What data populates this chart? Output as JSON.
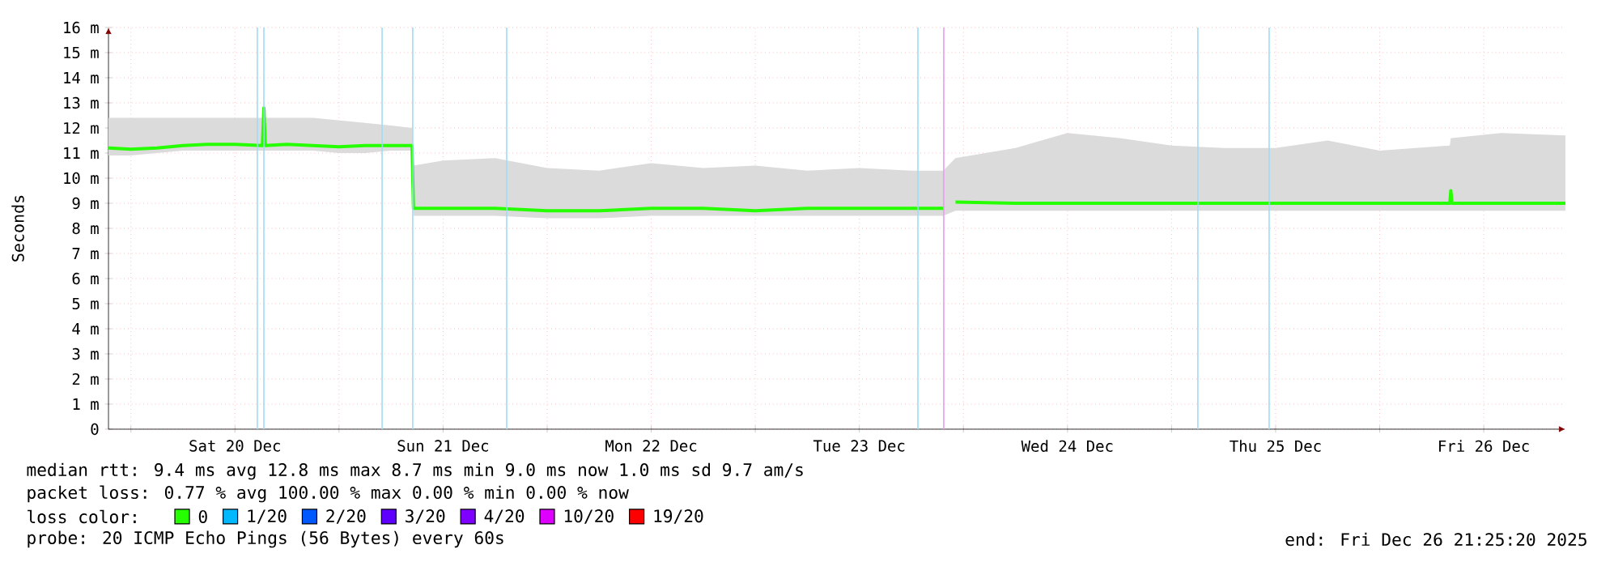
{
  "chart_data": {
    "type": "line",
    "ylabel": "Seconds",
    "legend_title": "loss color:",
    "legend": "bottom",
    "grid": true,
    "xlim": [
      "2025-12-19T21:25",
      "2025-12-26T21:25"
    ],
    "xticks": [
      {
        "value": "2025-12-20T00:00",
        "label": null
      },
      {
        "value": "2025-12-20T12:00",
        "label": "Sat 20 Dec"
      },
      {
        "value": "2025-12-21T00:00",
        "label": null
      },
      {
        "value": "2025-12-21T12:00",
        "label": "Sun 21 Dec"
      },
      {
        "value": "2025-12-22T00:00",
        "label": null
      },
      {
        "value": "2025-12-22T12:00",
        "label": "Mon 22 Dec"
      },
      {
        "value": "2025-12-23T00:00",
        "label": null
      },
      {
        "value": "2025-12-23T12:00",
        "label": "Tue 23 Dec"
      },
      {
        "value": "2025-12-24T00:00",
        "label": null
      },
      {
        "value": "2025-12-24T12:00",
        "label": "Wed 24 Dec"
      },
      {
        "value": "2025-12-25T00:00",
        "label": null
      },
      {
        "value": "2025-12-25T12:00",
        "label": "Thu 25 Dec"
      },
      {
        "value": "2025-12-26T00:00",
        "label": null
      },
      {
        "value": "2025-12-26T12:00",
        "label": "Fri 26 Dec"
      }
    ],
    "ylim": [
      0,
      16
    ],
    "yticks": [
      0,
      {
        "value": 1,
        "label": "1 m"
      },
      {
        "value": 2,
        "label": "2 m"
      },
      {
        "value": 3,
        "label": "3 m"
      },
      {
        "value": 4,
        "label": "4 m"
      },
      {
        "value": 5,
        "label": "5 m"
      },
      {
        "value": 6,
        "label": "6 m"
      },
      {
        "value": 7,
        "label": "7 m"
      },
      {
        "value": 8,
        "label": "8 m"
      },
      {
        "value": 9,
        "label": "9 m"
      },
      {
        "value": 10,
        "label": "10 m"
      },
      {
        "value": 11,
        "label": "11 m"
      },
      {
        "value": 12,
        "label": "12 m"
      },
      {
        "value": 13,
        "label": "13 m"
      },
      {
        "value": 14,
        "label": "14 m"
      },
      {
        "value": 15,
        "label": "15 m"
      },
      {
        "value": 16,
        "label": "16 m"
      }
    ],
    "x": [
      "2025-12-19T21:25",
      "2025-12-20T00:00",
      "2025-12-20T03:00",
      "2025-12-20T06:00",
      "2025-12-20T09:00",
      "2025-12-20T12:00",
      "2025-12-20T15:10",
      "2025-12-20T15:20",
      "2025-12-20T15:30",
      "2025-12-20T18:00",
      "2025-12-20T21:00",
      "2025-12-21T00:00",
      "2025-12-21T03:00",
      "2025-12-21T06:00",
      "2025-12-21T08:25",
      "2025-12-21T08:35",
      "2025-12-21T12:00",
      "2025-12-21T18:00",
      "2025-12-22T00:00",
      "2025-12-22T06:00",
      "2025-12-22T12:00",
      "2025-12-22T18:00",
      "2025-12-23T00:00",
      "2025-12-23T06:00",
      "2025-12-23T12:00",
      "2025-12-23T18:00",
      "2025-12-23T21:40",
      "2025-12-23T22:30",
      "2025-12-23T23:05",
      "2025-12-24T06:00",
      "2025-12-24T12:00",
      "2025-12-24T18:00",
      "2025-12-25T00:00",
      "2025-12-25T06:00",
      "2025-12-25T12:00",
      "2025-12-25T18:00",
      "2025-12-26T00:00",
      "2025-12-26T08:05",
      "2025-12-26T08:12",
      "2025-12-26T08:20",
      "2025-12-26T14:00",
      "2025-12-26T21:25"
    ],
    "series": [
      {
        "name": "0",
        "color": "#26ff00",
        "values": [
          11.2,
          11.15,
          11.2,
          11.3,
          11.35,
          11.35,
          11.3,
          12.8,
          11.3,
          11.35,
          11.3,
          11.25,
          11.3,
          11.3,
          11.3,
          8.8,
          8.8,
          8.8,
          8.7,
          8.7,
          8.8,
          8.8,
          8.7,
          8.8,
          8.8,
          8.8,
          8.8,
          null,
          9.05,
          9.0,
          9.0,
          9.0,
          9.0,
          9.0,
          9.0,
          9.0,
          9.0,
          9.0,
          9.5,
          9.0,
          9.0,
          9.0
        ],
        "lower": [
          10.9,
          10.9,
          11.0,
          11.1,
          11.1,
          11.1,
          11.1,
          11.1,
          11.1,
          11.1,
          11.1,
          11.0,
          11.0,
          11.1,
          11.1,
          8.5,
          8.5,
          8.5,
          8.4,
          8.4,
          8.5,
          8.5,
          8.5,
          8.5,
          8.5,
          8.5,
          8.5,
          null,
          8.7,
          8.7,
          8.7,
          8.7,
          8.7,
          8.7,
          8.7,
          8.7,
          8.7,
          8.7,
          8.7,
          8.7,
          8.7,
          8.7
        ],
        "upper": [
          12.4,
          12.4,
          12.4,
          12.4,
          12.4,
          12.4,
          12.4,
          12.4,
          12.4,
          12.4,
          12.4,
          12.3,
          12.2,
          12.1,
          12.0,
          10.5,
          10.7,
          10.8,
          10.4,
          10.3,
          10.6,
          10.4,
          10.5,
          10.3,
          10.4,
          10.3,
          10.3,
          null,
          10.8,
          11.2,
          11.8,
          11.6,
          11.3,
          11.2,
          11.2,
          11.5,
          11.1,
          11.3,
          11.6,
          11.6,
          11.8,
          11.7
        ]
      },
      {
        "name": "1/20",
        "color": "#00b8ff",
        "values": [
          null,
          null,
          null,
          null,
          null,
          null,
          null,
          null,
          null,
          null,
          null,
          null,
          null,
          null,
          null,
          null,
          null,
          null,
          null,
          null,
          null,
          null,
          null,
          null,
          null,
          null,
          null,
          null,
          null,
          null,
          null,
          null,
          null,
          null,
          null,
          null,
          null,
          null,
          null,
          null,
          null,
          null
        ]
      },
      {
        "name": "2/20",
        "color": "#0059ff",
        "values": [
          null,
          null,
          null,
          null,
          null,
          null,
          null,
          null,
          null,
          null,
          null,
          null,
          null,
          null,
          null,
          null,
          null,
          null,
          null,
          null,
          null,
          null,
          null,
          null,
          null,
          null,
          null,
          null,
          null,
          null,
          null,
          null,
          null,
          null,
          null,
          null,
          null,
          null,
          null,
          null,
          null,
          null
        ]
      },
      {
        "name": "3/20",
        "color": "#5e00ff",
        "values": [
          null,
          null,
          null,
          null,
          null,
          null,
          null,
          null,
          null,
          null,
          null,
          null,
          null,
          null,
          null,
          null,
          null,
          null,
          null,
          null,
          null,
          null,
          null,
          null,
          null,
          null,
          null,
          null,
          null,
          null,
          null,
          null,
          null,
          null,
          null,
          null,
          null,
          null,
          null,
          null,
          null,
          null
        ]
      },
      {
        "name": "4/20",
        "color": "#7e00ff",
        "values": [
          null,
          null,
          null,
          null,
          null,
          null,
          null,
          null,
          null,
          null,
          null,
          null,
          null,
          null,
          null,
          null,
          null,
          null,
          null,
          null,
          null,
          null,
          null,
          null,
          null,
          null,
          null,
          null,
          null,
          null,
          null,
          null,
          null,
          null,
          null,
          null,
          null,
          null,
          null,
          null,
          null,
          null
        ]
      },
      {
        "name": "10/20",
        "color": "#dd00ff",
        "values": [
          null,
          null,
          null,
          null,
          null,
          null,
          null,
          null,
          null,
          null,
          null,
          null,
          null,
          null,
          null,
          null,
          null,
          null,
          null,
          null,
          null,
          null,
          null,
          null,
          null,
          null,
          null,
          null,
          null,
          null,
          null,
          null,
          null,
          null,
          null,
          null,
          null,
          null,
          null,
          null,
          null,
          null
        ]
      },
      {
        "name": "19/20",
        "color": "#ff0000",
        "values": [
          null,
          null,
          null,
          null,
          null,
          null,
          null,
          null,
          null,
          null,
          null,
          null,
          null,
          null,
          null,
          null,
          null,
          null,
          null,
          null,
          null,
          null,
          null,
          null,
          null,
          null,
          null,
          null,
          null,
          null,
          null,
          null,
          null,
          null,
          null,
          null,
          null,
          null,
          null,
          null,
          null,
          null
        ]
      }
    ],
    "ref_lines": [
      {
        "axis": "x",
        "value": "2025-12-20T14:35",
        "color": "#9fdcf5"
      },
      {
        "axis": "x",
        "value": "2025-12-20T15:20",
        "color": "#9fdcf5"
      },
      {
        "axis": "x",
        "value": "2025-12-21T04:58",
        "color": "#9fdcf5"
      },
      {
        "axis": "x",
        "value": "2025-12-21T08:30",
        "color": "#9fdcf5"
      },
      {
        "axis": "x",
        "value": "2025-12-21T19:20",
        "color": "#9fdcf5"
      },
      {
        "axis": "x",
        "value": "2025-12-23T18:45",
        "color": "#9fdcf5"
      },
      {
        "axis": "x",
        "value": "2025-12-23T21:44",
        "color": "#e89cf0"
      },
      {
        "axis": "x",
        "value": "2025-12-25T03:02",
        "color": "#9fdcf5"
      },
      {
        "axis": "x",
        "value": "2025-12-25T11:15",
        "color": "#9fdcf5"
      }
    ],
    "annotations": [
      "median rtt:  9.4 ms avg  12.8 ms max  8.7 ms min  9.0 ms now  1.0 ms sd  9.7   am/s",
      "packet loss: 0.77 % avg  100.00 % max  0.00 % min  0.00 % now",
      "probe:       20 ICMP Echo Pings (56 Bytes) every 60s",
      "end: Fri Dec 26 21:25:20 2025"
    ]
  }
}
